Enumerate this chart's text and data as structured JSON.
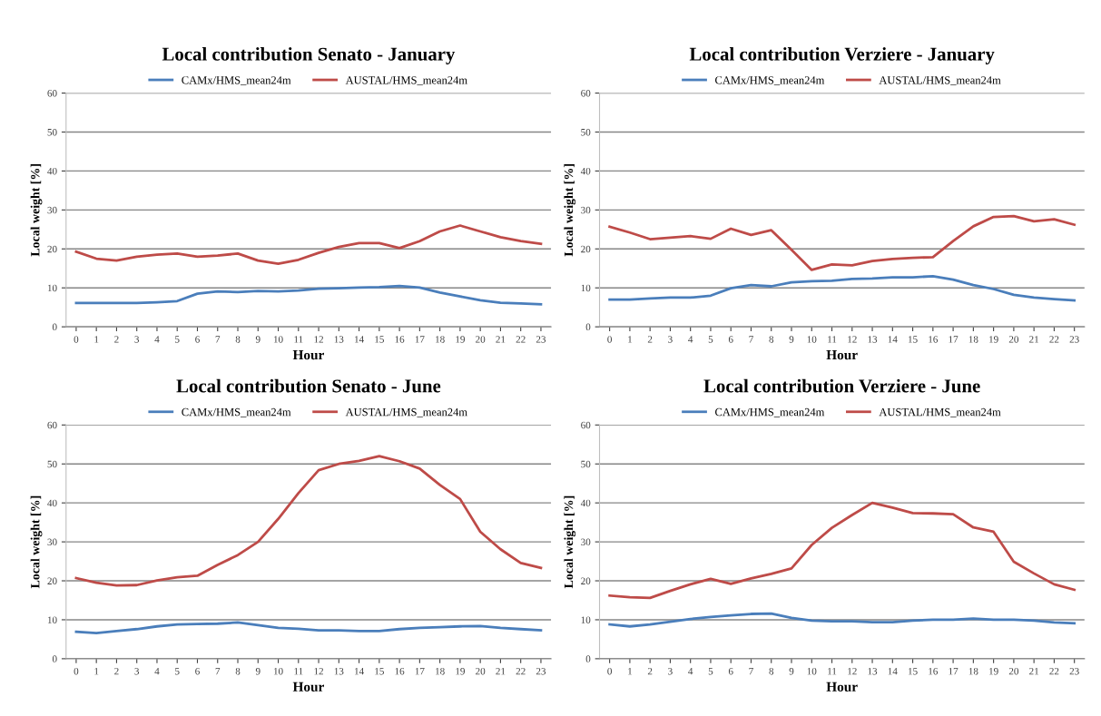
{
  "chart_data": [
    {
      "type": "line",
      "title": "Local contribution Senato - January",
      "xlabel": "Hour",
      "ylabel": "Local weight [%]",
      "categories": [
        "0",
        "1",
        "2",
        "3",
        "4",
        "5",
        "6",
        "7",
        "8",
        "9",
        "10",
        "11",
        "12",
        "13",
        "14",
        "15",
        "16",
        "17",
        "18",
        "19",
        "20",
        "21",
        "22",
        "23"
      ],
      "ylim": [
        0,
        60
      ],
      "yticks": [
        0,
        10,
        20,
        30,
        40,
        50,
        60
      ],
      "grid": "y",
      "legend": "top",
      "marker": "none",
      "series": [
        {
          "name": "CAMx/HMS_mean24m",
          "color": "#4a7ebb",
          "values": [
            6.1,
            6.1,
            6.1,
            6.1,
            6.3,
            6.6,
            8.5,
            9.1,
            8.9,
            9.2,
            9.1,
            9.3,
            9.8,
            9.9,
            10.1,
            10.2,
            10.5,
            10.1,
            8.8,
            7.8,
            6.8,
            6.2,
            6.0,
            5.8
          ]
        },
        {
          "name": "AUSTAL/HMS_mean24m",
          "color": "#be4b48",
          "values": [
            19.3,
            17.5,
            17,
            18,
            18.5,
            18.8,
            18,
            18.3,
            18.8,
            17,
            16.2,
            17.2,
            19,
            20.5,
            21.5,
            21.5,
            20.2,
            22,
            24.5,
            26,
            24.5,
            23,
            22,
            21.3
          ]
        }
      ]
    },
    {
      "type": "line",
      "title": "Local contribution Verziere - January",
      "xlabel": "Hour",
      "ylabel": "Local weight [%]",
      "categories": [
        "0",
        "1",
        "2",
        "3",
        "4",
        "5",
        "6",
        "7",
        "8",
        "9",
        "10",
        "11",
        "12",
        "13",
        "14",
        "15",
        "16",
        "17",
        "18",
        "19",
        "20",
        "21",
        "22",
        "23"
      ],
      "ylim": [
        0,
        60
      ],
      "yticks": [
        0,
        10,
        20,
        30,
        40,
        50,
        60
      ],
      "grid": "y",
      "legend": "top",
      "marker": "none",
      "series": [
        {
          "name": "CAMx/HMS_mean24m",
          "color": "#4a7ebb",
          "values": [
            7,
            7,
            7.3,
            7.5,
            7.5,
            8,
            9.9,
            10.7,
            10.4,
            11.4,
            11.7,
            11.8,
            12.3,
            12.4,
            12.7,
            12.7,
            13,
            12.1,
            10.7,
            9.7,
            8.2,
            7.5,
            7.1,
            6.8
          ]
        },
        {
          "name": "AUSTAL/HMS_mean24m",
          "color": "#be4b48",
          "values": [
            25.7,
            24.2,
            22.5,
            22.9,
            23.3,
            22.6,
            25.2,
            23.6,
            24.8,
            19.8,
            14.6,
            16,
            15.8,
            16.9,
            17.4,
            17.7,
            17.9,
            22,
            25.8,
            28.2,
            28.4,
            27.1,
            27.6,
            26.2
          ]
        }
      ]
    },
    {
      "type": "line",
      "title": "Local contribution Senato - June",
      "xlabel": "Hour",
      "ylabel": "Local weight [%]",
      "categories": [
        "0",
        "1",
        "2",
        "3",
        "4",
        "5",
        "6",
        "7",
        "8",
        "9",
        "10",
        "11",
        "12",
        "13",
        "14",
        "15",
        "16",
        "17",
        "18",
        "19",
        "20",
        "21",
        "22",
        "23"
      ],
      "ylim": [
        0,
        60
      ],
      "yticks": [
        0,
        10,
        20,
        30,
        40,
        50,
        60
      ],
      "grid": "y",
      "legend": "top",
      "marker": "none",
      "series": [
        {
          "name": "CAMx/HMS_mean24m",
          "color": "#4a7ebb",
          "values": [
            6.9,
            6.6,
            7.1,
            7.6,
            8.3,
            8.8,
            8.9,
            9.0,
            9.3,
            8.6,
            7.9,
            7.7,
            7.3,
            7.3,
            7.1,
            7.1,
            7.6,
            7.9,
            8.1,
            8.3,
            8.4,
            7.9,
            7.6,
            7.3
          ]
        },
        {
          "name": "AUSTAL/HMS_mean24m",
          "color": "#be4b48",
          "values": [
            20.7,
            19.5,
            18.8,
            18.9,
            20.1,
            20.9,
            21.3,
            24.1,
            26.6,
            30,
            35.9,
            42.5,
            48.4,
            50,
            50.8,
            52,
            50.7,
            48.8,
            44.6,
            41,
            32.6,
            28.1,
            24.6,
            23.3
          ]
        }
      ]
    },
    {
      "type": "line",
      "title": "Local contribution Verziere - June",
      "xlabel": "Hour",
      "ylabel": "Local weight [%]",
      "categories": [
        "0",
        "1",
        "2",
        "3",
        "4",
        "5",
        "6",
        "7",
        "8",
        "9",
        "10",
        "11",
        "12",
        "13",
        "14",
        "15",
        "16",
        "17",
        "18",
        "19",
        "20",
        "21",
        "22",
        "23"
      ],
      "ylim": [
        0,
        60
      ],
      "yticks": [
        0,
        10,
        20,
        30,
        40,
        50,
        60
      ],
      "grid": "y",
      "legend": "top",
      "marker": "none",
      "series": [
        {
          "name": "CAMx/HMS_mean24m",
          "color": "#4a7ebb",
          "values": [
            8.8,
            8.3,
            8.8,
            9.5,
            10.2,
            10.7,
            11.1,
            11.5,
            11.6,
            10.5,
            9.8,
            9.6,
            9.6,
            9.4,
            9.4,
            9.8,
            10,
            10,
            10.3,
            10,
            10,
            9.8,
            9.3,
            9.1
          ]
        },
        {
          "name": "AUSTAL/HMS_mean24m",
          "color": "#be4b48",
          "values": [
            16.2,
            15.8,
            15.6,
            17.4,
            19.1,
            20.5,
            19.2,
            20.6,
            21.8,
            23.2,
            29.2,
            33.6,
            36.9,
            40,
            38.8,
            37.4,
            37.3,
            37.1,
            33.7,
            32.6,
            24.9,
            21.9,
            19.1,
            17.7
          ]
        }
      ]
    }
  ]
}
